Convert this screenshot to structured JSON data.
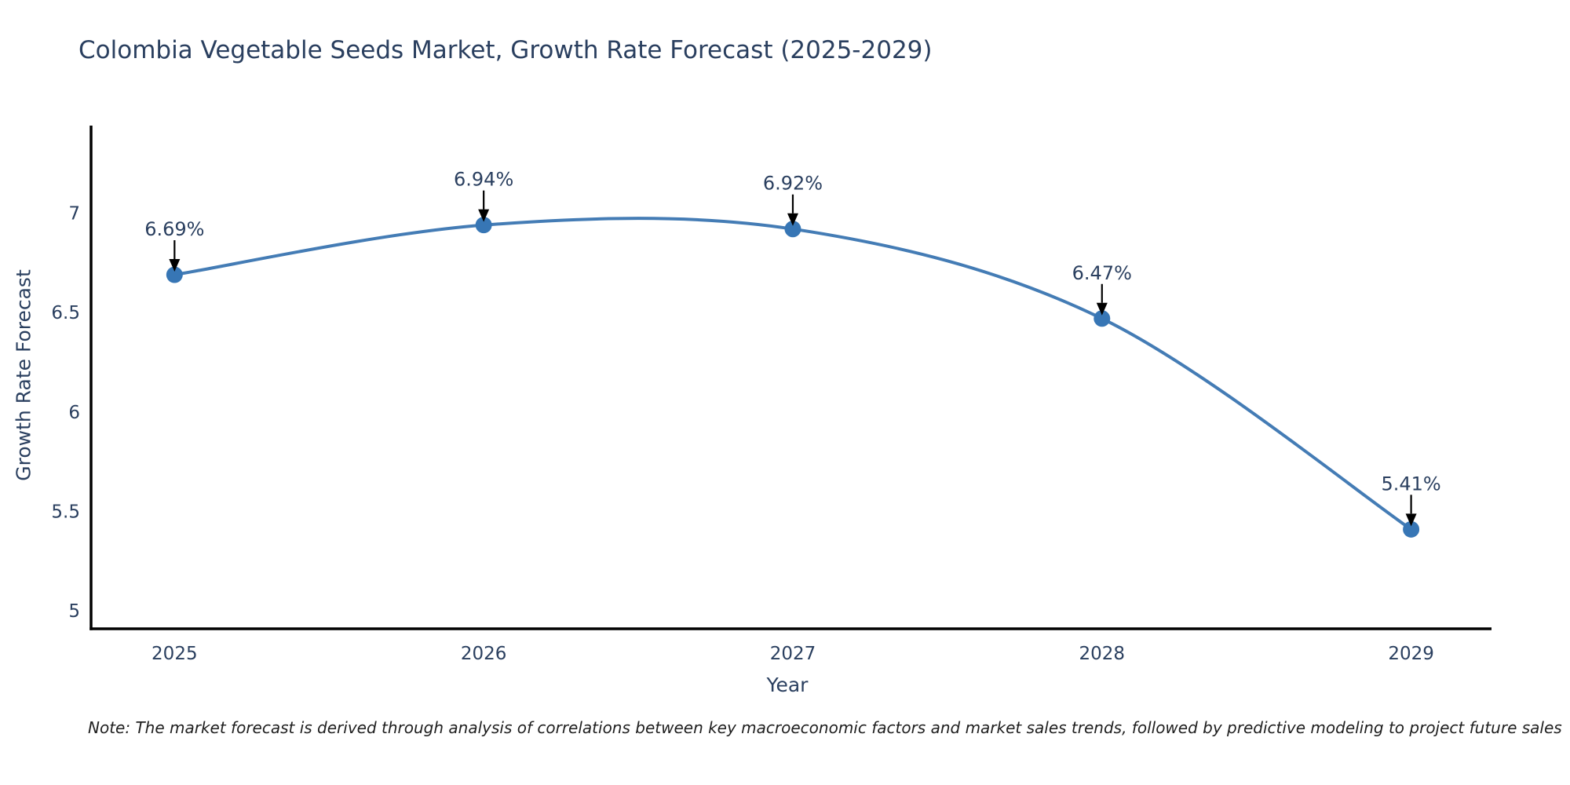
{
  "title": "Colombia Vegetable Seeds Market, Growth Rate Forecast (2025-2029)",
  "note": "Note: The market forecast is derived through analysis of correlations between key macroeconomic factors and market sales trends, followed by predictive modeling to project future sales",
  "chart_data": {
    "type": "line",
    "title": "Colombia Vegetable Seeds Market, Growth Rate Forecast (2025-2029)",
    "xlabel": "Year",
    "ylabel": "Growth Rate Forecast",
    "x": [
      2025,
      2026,
      2027,
      2028,
      2029
    ],
    "values": [
      6.69,
      6.94,
      6.92,
      6.47,
      5.41
    ],
    "labels": [
      "6.69%",
      "6.94%",
      "6.92%",
      "6.47%",
      "5.41%"
    ],
    "xticks": [
      2025,
      2026,
      2027,
      2028,
      2029
    ],
    "yticks": [
      5,
      5.5,
      6,
      6.5,
      7
    ],
    "xlim": [
      2024.73,
      2029.26
    ],
    "ylim": [
      4.91,
      7.44
    ],
    "grid": false,
    "legend": false,
    "line_shape": "spline",
    "annotation_style": "value label with down arrow to marker",
    "colors": {
      "line": "#447cb5",
      "marker": "#3776b5",
      "axis": "#000000",
      "arrow": "#000000",
      "text": "#2a3f5f",
      "note_text": "#1f1f1f",
      "background": "#ffffff"
    }
  }
}
